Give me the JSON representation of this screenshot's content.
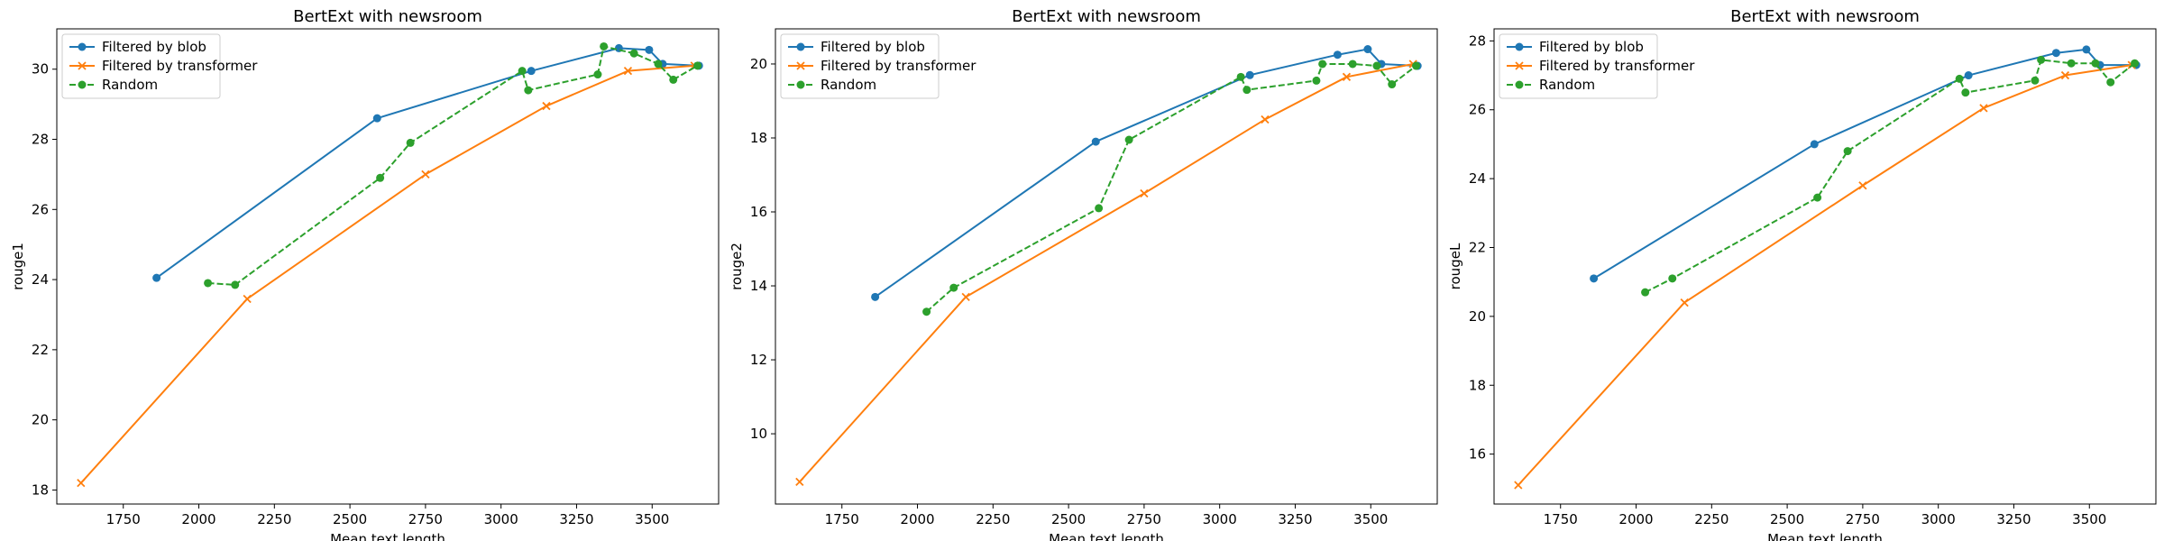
{
  "chart_data": [
    {
      "type": "line",
      "title": "BertExt with newsroom",
      "xlabel": "Mean text length",
      "ylabel": "rouge1",
      "xlim": [
        1530,
        3720
      ],
      "ylim": [
        17.6,
        31.15
      ],
      "xticks": [
        1750,
        2000,
        2250,
        2500,
        2750,
        3000,
        3250,
        3500
      ],
      "xtick_labels": [
        "1750",
        "2000",
        "2250",
        "2500",
        "2750",
        "3000",
        "3250",
        "3500"
      ],
      "yticks": [
        18,
        20,
        22,
        24,
        26,
        28,
        30
      ],
      "ytick_labels": [
        "18",
        "20",
        "22",
        "24",
        "26",
        "28",
        "30"
      ],
      "grid": false,
      "legend_position": "upper-left",
      "series": [
        {
          "name": "Filtered by blob",
          "color": "#1f77b4",
          "marker": "circle",
          "linestyle": "solid",
          "x": [
            1860,
            2590,
            3100,
            3390,
            3490,
            3535,
            3655
          ],
          "y": [
            24.05,
            28.6,
            29.95,
            30.6,
            30.55,
            30.15,
            30.1
          ]
        },
        {
          "name": "Filtered by transformer",
          "color": "#ff7f0e",
          "marker": "x",
          "linestyle": "solid",
          "x": [
            1610,
            2160,
            2750,
            3150,
            3420,
            3640
          ],
          "y": [
            18.2,
            23.45,
            27.0,
            28.95,
            29.95,
            30.1
          ]
        },
        {
          "name": "Random",
          "color": "#2ca02c",
          "marker": "circle",
          "linestyle": "dashed",
          "x": [
            2030,
            2120,
            2600,
            2700,
            3070,
            3090,
            3320,
            3340,
            3440,
            3520,
            3570,
            3650
          ],
          "y": [
            23.9,
            23.85,
            26.9,
            27.9,
            29.95,
            29.4,
            29.85,
            30.65,
            30.45,
            30.15,
            29.7,
            30.1
          ]
        }
      ]
    },
    {
      "type": "line",
      "title": "BertExt with newsroom",
      "xlabel": "Mean text length",
      "ylabel": "rouge2",
      "xlim": [
        1530,
        3720
      ],
      "ylim": [
        8.1,
        20.95
      ],
      "xticks": [
        1750,
        2000,
        2250,
        2500,
        2750,
        3000,
        3250,
        3500
      ],
      "xtick_labels": [
        "1750",
        "2000",
        "2250",
        "2500",
        "2750",
        "3000",
        "3250",
        "3500"
      ],
      "yticks": [
        10,
        12,
        14,
        16,
        18,
        20
      ],
      "ytick_labels": [
        "10",
        "12",
        "14",
        "16",
        "18",
        "20"
      ],
      "grid": false,
      "legend_position": "upper-left",
      "series": [
        {
          "name": "Filtered by blob",
          "color": "#1f77b4",
          "marker": "circle",
          "linestyle": "solid",
          "x": [
            1860,
            2590,
            3100,
            3390,
            3490,
            3535,
            3655
          ],
          "y": [
            13.7,
            17.9,
            19.7,
            20.25,
            20.4,
            20.0,
            19.95
          ]
        },
        {
          "name": "Filtered by transformer",
          "color": "#ff7f0e",
          "marker": "x",
          "linestyle": "solid",
          "x": [
            1610,
            2160,
            2750,
            3150,
            3420,
            3640
          ],
          "y": [
            8.7,
            13.7,
            16.5,
            18.5,
            19.65,
            20.0
          ]
        },
        {
          "name": "Random",
          "color": "#2ca02c",
          "marker": "circle",
          "linestyle": "dashed",
          "x": [
            2030,
            2120,
            2600,
            2700,
            3070,
            3090,
            3320,
            3340,
            3440,
            3520,
            3570,
            3650
          ],
          "y": [
            13.3,
            13.95,
            16.1,
            17.95,
            19.65,
            19.3,
            19.55,
            20.0,
            20.0,
            19.95,
            19.45,
            19.95
          ]
        }
      ]
    },
    {
      "type": "line",
      "title": "BertExt with newsroom",
      "xlabel": "Mean text length",
      "ylabel": "rougeL",
      "xlim": [
        1530,
        3720
      ],
      "ylim": [
        14.55,
        28.35
      ],
      "xticks": [
        1750,
        2000,
        2250,
        2500,
        2750,
        3000,
        3250,
        3500
      ],
      "xtick_labels": [
        "1750",
        "2000",
        "2250",
        "2500",
        "2750",
        "3000",
        "3250",
        "3500"
      ],
      "yticks": [
        16,
        18,
        20,
        22,
        24,
        26,
        28
      ],
      "ytick_labels": [
        "16",
        "18",
        "20",
        "22",
        "24",
        "26",
        "28"
      ],
      "grid": false,
      "legend_position": "upper-left",
      "series": [
        {
          "name": "Filtered by blob",
          "color": "#1f77b4",
          "marker": "circle",
          "linestyle": "solid",
          "x": [
            1860,
            2590,
            3100,
            3390,
            3490,
            3535,
            3655
          ],
          "y": [
            21.1,
            25.0,
            27.0,
            27.65,
            27.75,
            27.3,
            27.3
          ]
        },
        {
          "name": "Filtered by transformer",
          "color": "#ff7f0e",
          "marker": "x",
          "linestyle": "solid",
          "x": [
            1610,
            2160,
            2750,
            3150,
            3420,
            3640
          ],
          "y": [
            15.1,
            20.4,
            23.8,
            26.05,
            27.0,
            27.3
          ]
        },
        {
          "name": "Random",
          "color": "#2ca02c",
          "marker": "circle",
          "linestyle": "dashed",
          "x": [
            2030,
            2120,
            2600,
            2700,
            3070,
            3090,
            3320,
            3340,
            3440,
            3520,
            3570,
            3650
          ],
          "y": [
            20.7,
            21.1,
            23.45,
            24.8,
            26.9,
            26.5,
            26.85,
            27.45,
            27.35,
            27.35,
            26.8,
            27.35
          ]
        }
      ]
    }
  ]
}
